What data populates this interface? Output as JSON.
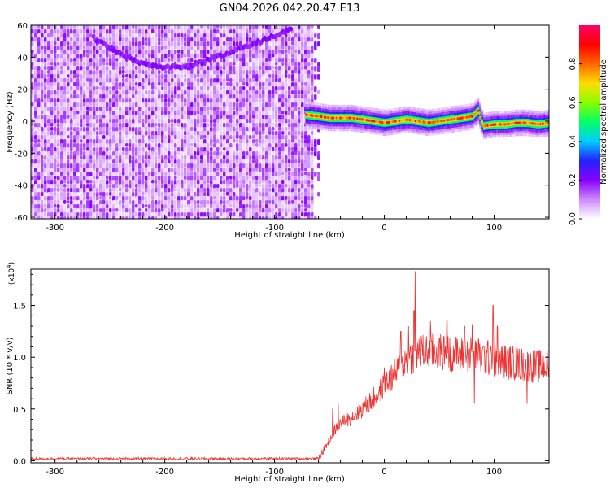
{
  "title": "GN04.2026.042.20.47.E13",
  "colors": {
    "frame": "#000000",
    "snr_line": "#ee3333",
    "spectrogram_background": "#ffffff"
  },
  "colorbar": {
    "label": "Normalized spectral amplitude",
    "ticks": [
      "0.0",
      "0.2",
      "0.4",
      "0.6",
      "0.8"
    ],
    "tick_values": [
      0.0,
      0.2,
      0.4,
      0.6,
      0.8
    ],
    "range": [
      0,
      1
    ],
    "colormap": [
      "#ffffff",
      "#cc88ff",
      "#8800ff",
      "#2222ff",
      "#00ccff",
      "#00ff66",
      "#88ff00",
      "#ffdd00",
      "#ff6600",
      "#ff0000",
      "#ff0066"
    ]
  },
  "chart_data": [
    {
      "type": "heatmap",
      "name": "spectrogram",
      "xlabel": "Height of straight line (km)",
      "ylabel": "Frequency (Hz)",
      "xlim": [
        -322,
        150
      ],
      "ylim": [
        -61,
        60
      ],
      "xticks": [
        -300,
        -200,
        -100,
        0,
        100
      ],
      "xtick_labels": [
        "-300",
        "-200",
        "-100",
        "0",
        "100"
      ],
      "yticks": [
        -60,
        -40,
        -20,
        0,
        20,
        40,
        60
      ],
      "ytick_labels": [
        "-60",
        "-40",
        "-20",
        "0",
        "20",
        "40",
        "60"
      ],
      "noise_region_x": [
        -322,
        -65
      ],
      "noise_cutoff_x": -65,
      "arc": {
        "x": [
          -265,
          -245,
          -225,
          -205,
          -185,
          -165,
          -145,
          -125,
          -105,
          -85
        ],
        "y": [
          52,
          44,
          37,
          34,
          34,
          37,
          42,
          47,
          52,
          58
        ]
      },
      "carrier": {
        "x": [
          -72,
          -60,
          -50,
          -40,
          -30,
          -20,
          -10,
          0,
          10,
          20,
          30,
          40,
          50,
          60,
          70,
          80,
          85,
          88,
          90,
          100,
          110,
          120,
          130,
          140,
          150
        ],
        "y": [
          4,
          3,
          2,
          2,
          2,
          1,
          0,
          -1,
          0,
          1,
          0,
          -1,
          0,
          1,
          2,
          3,
          7,
          0,
          -3,
          -2,
          -2,
          -1,
          -1,
          -2,
          -1
        ],
        "peak_amplitude": 0.95
      }
    },
    {
      "type": "line",
      "name": "snr",
      "xlabel": "Height of straight line (km)",
      "ylabel": "SNR (10 * v/v)",
      "y_multiplier": "(x10",
      "y_multiplier_exponent": "4",
      "y_multiplier_close": ")",
      "xlim": [
        -322,
        150
      ],
      "ylim": [
        -0.02,
        1.85
      ],
      "xticks": [
        -300,
        -200,
        -100,
        0,
        100
      ],
      "xtick_labels": [
        "-300",
        "-200",
        "-100",
        "0",
        "100"
      ],
      "yticks": [
        0.0,
        0.5,
        1.0,
        1.5
      ],
      "ytick_labels": [
        "0.0",
        "0.5",
        "1.0",
        "1.5"
      ],
      "series": [
        {
          "trend_x": [
            -322,
            -60,
            -50,
            -45,
            -40,
            -30,
            -20,
            -10,
            0,
            10,
            20,
            30,
            40,
            50,
            60,
            70,
            80,
            90,
            100,
            110,
            120,
            130,
            140,
            150
          ],
          "trend_y": [
            0.02,
            0.02,
            0.2,
            0.3,
            0.36,
            0.42,
            0.5,
            0.6,
            0.72,
            0.85,
            0.97,
            1.04,
            1.06,
            1.05,
            1.04,
            1.02,
            1.03,
            1.0,
            0.98,
            0.96,
            0.94,
            0.92,
            0.91,
            0.92
          ],
          "spikes_x": [
            -47,
            -42,
            -35,
            0,
            15,
            22,
            27,
            28,
            30,
            42,
            57,
            73,
            80,
            82,
            88,
            97,
            99,
            103,
            120,
            130
          ],
          "spikes_y": [
            0.5,
            0.55,
            0.4,
            0.9,
            1.25,
            1.3,
            1.45,
            1.83,
            1.1,
            1.35,
            1.35,
            1.3,
            1.32,
            0.55,
            0.85,
            1.1,
            1.5,
            1.3,
            1.25,
            0.55
          ]
        }
      ]
    }
  ]
}
